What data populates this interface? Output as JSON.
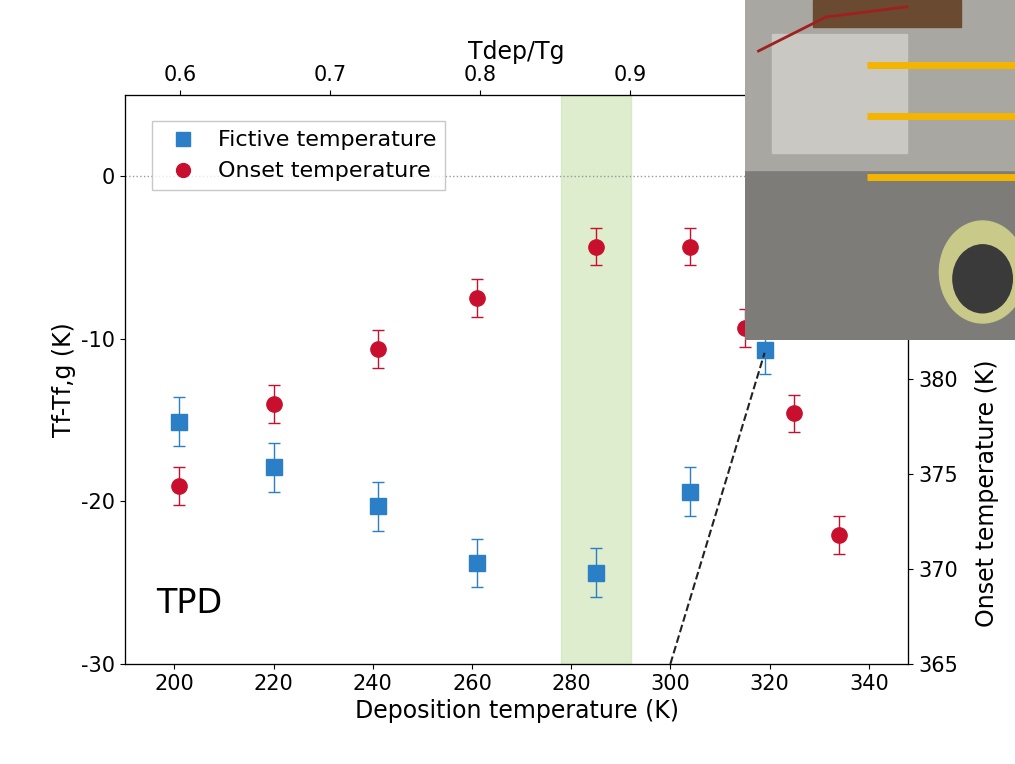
{
  "chart_data": {
    "type": "scatter",
    "xlabel": "Deposition temperature (K)",
    "ylabel": "Tf-Tf,g (K)",
    "y2label": "Onset temperature (K)",
    "x2label": "Tdep/Tg",
    "xlim": [
      190,
      348
    ],
    "xticks": [
      200,
      220,
      240,
      260,
      280,
      300,
      320,
      340
    ],
    "ylim": [
      -30,
      5
    ],
    "yticks": [
      -30,
      -20,
      -10,
      0
    ],
    "y2lim": [
      365,
      395
    ],
    "y2ticks": [
      365,
      370,
      375,
      380
    ],
    "x2lim": [
      0.563,
      1.086
    ],
    "x2ticks": [
      0.6,
      0.7,
      0.8,
      0.9
    ],
    "hline": 0,
    "highlight_x": [
      278,
      292
    ],
    "annotations": [
      {
        "text": "TPD"
      }
    ],
    "legend": "upper left",
    "series": [
      {
        "name": "Fictive temperature",
        "type": "scatter",
        "color": "#2b7fc6",
        "marker": "square",
        "x": [
          201,
          220,
          241,
          261,
          285,
          304,
          319
        ],
        "values": [
          -15.1,
          -17.9,
          -20.3,
          -23.8,
          -24.4,
          -19.4,
          -10.7
        ],
        "errors": [
          1.5,
          1.5,
          1.5,
          1.5,
          1.5,
          1.5,
          1.5
        ]
      },
      {
        "name": "Onset temperature",
        "type": "scatter",
        "color": "#c8102e",
        "marker": "circle",
        "axis": "y2",
        "x": [
          201,
          220,
          241,
          261,
          285,
          304,
          315,
          325,
          334
        ],
        "values": [
          374.4,
          378.7,
          381.6,
          384.3,
          387.0,
          387.0,
          382.7,
          378.2,
          371.8
        ],
        "errors": [
          1.0,
          1.0,
          1.0,
          1.0,
          1.0,
          1.0,
          1.0,
          1.0,
          1.0
        ]
      },
      {
        "type": "line",
        "color": "#222222",
        "line_style": "dashed",
        "axis": "y2",
        "x": [
          300,
          319
        ],
        "values": [
          365,
          381.4
        ]
      }
    ]
  }
}
